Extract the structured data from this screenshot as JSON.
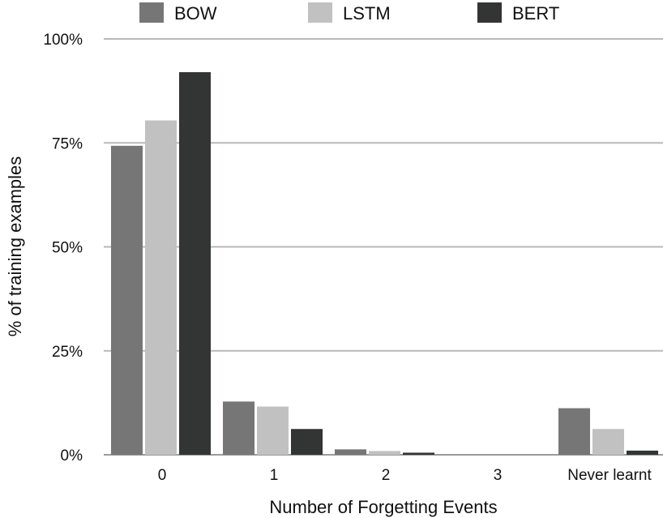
{
  "chart_data": {
    "type": "bar",
    "categories": [
      "0",
      "1",
      "2",
      "3",
      "Never learnt"
    ],
    "series": [
      {
        "name": "BOW",
        "color": "#767676",
        "values": [
          74.3,
          12.8,
          1.3,
          0.0,
          11.2
        ]
      },
      {
        "name": "LSTM",
        "color": "#c0c1c0",
        "values": [
          80.4,
          11.6,
          0.9,
          0.0,
          6.2
        ]
      },
      {
        "name": "BERT",
        "color": "#333434",
        "values": [
          92.0,
          6.2,
          0.5,
          0.0,
          1.0
        ]
      }
    ],
    "title": "",
    "xlabel": "Number of Forgetting Events",
    "ylabel": "% of training examples",
    "ylim": [
      0,
      100
    ],
    "yticks": [
      0,
      25,
      50,
      75,
      100
    ],
    "ytick_labels": [
      "0%",
      "25%",
      "50%",
      "75%",
      "100%"
    ],
    "grid": "horizontal",
    "legend_position": "top"
  }
}
